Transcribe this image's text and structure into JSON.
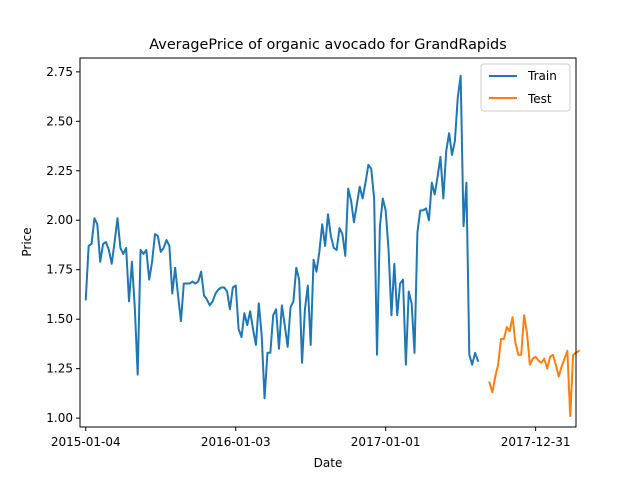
{
  "chart_data": {
    "type": "line",
    "title": "AveragePrice of organic avocado for GrandRapids",
    "xlabel": "Date",
    "ylabel": "Price",
    "x_type": "date",
    "xlim": [
      "2014-12-21",
      "2018-04-08"
    ],
    "ylim": [
      0.955,
      2.82
    ],
    "x_ticks": [
      "2015-01-04",
      "2016-01-03",
      "2017-01-01",
      "2017-12-31"
    ],
    "y_ticks": [
      1.0,
      1.25,
      1.5,
      1.75,
      2.0,
      2.25,
      2.5,
      2.75
    ],
    "y_tick_labels": [
      "1.00",
      "1.25",
      "1.50",
      "1.75",
      "2.00",
      "2.25",
      "2.50",
      "2.75"
    ],
    "grid": false,
    "legend": {
      "position": "top-right"
    },
    "series": [
      {
        "name": "Train",
        "color": "#1f77b4",
        "start": "2015-01-04",
        "step_days": 7,
        "values": [
          1.6,
          1.87,
          1.88,
          2.01,
          1.98,
          1.79,
          1.88,
          1.89,
          1.85,
          1.78,
          1.89,
          2.01,
          1.86,
          1.83,
          1.86,
          1.59,
          1.79,
          1.56,
          1.22,
          1.85,
          1.83,
          1.85,
          1.7,
          1.79,
          1.93,
          1.92,
          1.84,
          1.86,
          1.9,
          1.87,
          1.63,
          1.76,
          1.62,
          1.49,
          1.68,
          1.68,
          1.68,
          1.69,
          1.68,
          1.69,
          1.74,
          1.62,
          1.6,
          1.57,
          1.59,
          1.63,
          1.65,
          1.66,
          1.66,
          1.64,
          1.55,
          1.66,
          1.67,
          1.45,
          1.41,
          1.53,
          1.47,
          1.54,
          1.45,
          1.37,
          1.58,
          1.42,
          1.1,
          1.33,
          1.33,
          1.52,
          1.55,
          1.35,
          1.57,
          1.47,
          1.36,
          1.56,
          1.59,
          1.76,
          1.7,
          1.28,
          1.55,
          1.67,
          1.37,
          1.8,
          1.74,
          1.84,
          1.98,
          1.87,
          2.03,
          1.92,
          1.86,
          1.85,
          1.96,
          1.93,
          1.82,
          2.16,
          2.1,
          1.99,
          2.08,
          2.17,
          2.11,
          2.19,
          2.28,
          2.26,
          2.11,
          1.32,
          1.97,
          2.11,
          2.05,
          1.85,
          1.52,
          1.78,
          1.52,
          1.68,
          1.7,
          1.27,
          1.64,
          1.58,
          1.33,
          1.94,
          2.05,
          2.05,
          2.06,
          2.0,
          2.19,
          2.13,
          2.22,
          2.32,
          2.11,
          2.35,
          2.44,
          2.33,
          2.4,
          2.62,
          2.73,
          1.97,
          2.19,
          1.32,
          1.27,
          1.33,
          1.29
        ]
      },
      {
        "name": "Test",
        "color": "#ff7f0e",
        "start": "2017-09-10",
        "step_days": 7,
        "values": [
          1.18,
          1.13,
          1.21,
          1.27,
          1.4,
          1.4,
          1.46,
          1.44,
          1.51,
          1.38,
          1.32,
          1.32,
          1.52,
          1.43,
          1.27,
          1.3,
          1.31,
          1.29,
          1.28,
          1.3,
          1.25,
          1.31,
          1.32,
          1.27,
          1.21,
          1.26,
          1.3,
          1.34,
          1.01,
          1.32,
          1.33,
          1.34
        ]
      }
    ]
  }
}
